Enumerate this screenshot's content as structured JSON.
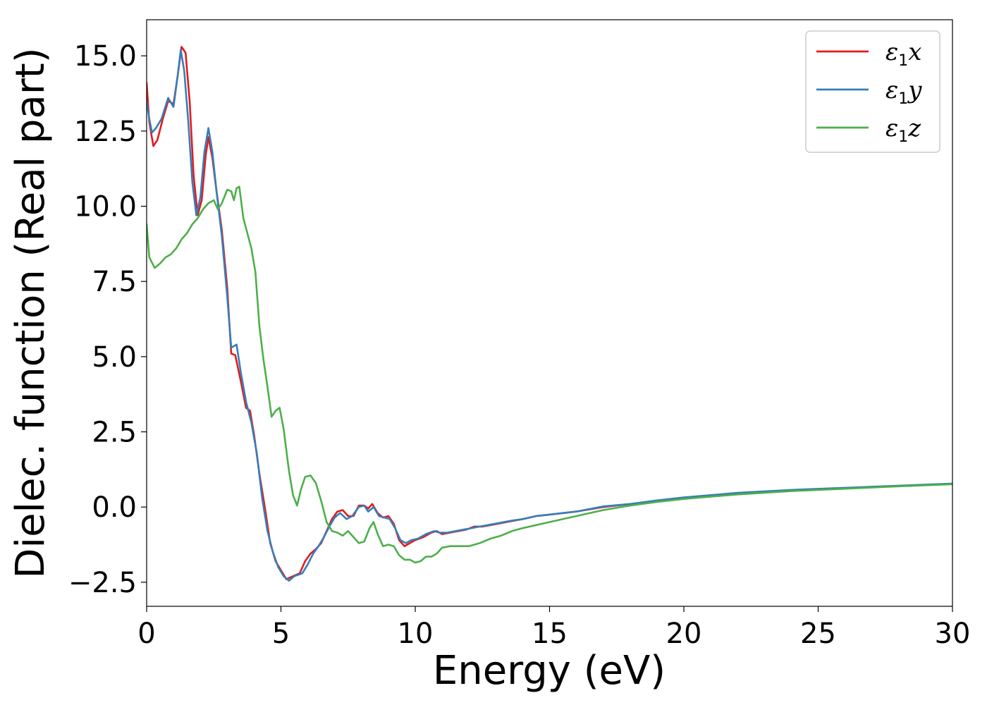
{
  "chart_data": {
    "type": "line",
    "xlabel": "Energy (eV)",
    "ylabel": "Dielec. function (Real part)",
    "xlim": [
      0,
      30
    ],
    "ylim": [
      -3.3,
      16.2
    ],
    "xticks": [
      0,
      5,
      10,
      15,
      20,
      25,
      30
    ],
    "xtick_labels": [
      "0",
      "5",
      "10",
      "15",
      "20",
      "25",
      "30"
    ],
    "yticks": [
      -2.5,
      0.0,
      2.5,
      5.0,
      7.5,
      10.0,
      12.5,
      15.0
    ],
    "ytick_labels": [
      "−2.5",
      "0.0",
      "2.5",
      "5.0",
      "7.5",
      "10.0",
      "12.5",
      "15.0"
    ],
    "grid": false,
    "legend_position": "top-right",
    "series": [
      {
        "name": "ε₁x",
        "legend_symbol": "ε",
        "legend_sub": "1",
        "legend_var": "x",
        "color": "#e41a1c",
        "points": [
          [
            0,
            14.1
          ],
          [
            0.1,
            12.8
          ],
          [
            0.25,
            12.0
          ],
          [
            0.4,
            12.2
          ],
          [
            0.6,
            12.9
          ],
          [
            0.8,
            13.5
          ],
          [
            1.0,
            13.4
          ],
          [
            1.15,
            14.3
          ],
          [
            1.3,
            15.3
          ],
          [
            1.45,
            15.1
          ],
          [
            1.6,
            13.5
          ],
          [
            1.75,
            11.0
          ],
          [
            1.9,
            9.7
          ],
          [
            2.05,
            10.2
          ],
          [
            2.2,
            11.7
          ],
          [
            2.3,
            12.3
          ],
          [
            2.45,
            11.6
          ],
          [
            2.6,
            10.5
          ],
          [
            2.8,
            9.2
          ],
          [
            3.0,
            7.3
          ],
          [
            3.15,
            5.1
          ],
          [
            3.3,
            5.05
          ],
          [
            3.5,
            4.2
          ],
          [
            3.7,
            3.3
          ],
          [
            3.85,
            3.2
          ],
          [
            4.0,
            2.4
          ],
          [
            4.2,
            1.1
          ],
          [
            4.4,
            0.0
          ],
          [
            4.6,
            -1.2
          ],
          [
            4.8,
            -1.8
          ],
          [
            5.0,
            -2.1
          ],
          [
            5.2,
            -2.4
          ],
          [
            5.45,
            -2.3
          ],
          [
            5.7,
            -2.2
          ],
          [
            5.9,
            -1.8
          ],
          [
            6.1,
            -1.55
          ],
          [
            6.3,
            -1.4
          ],
          [
            6.5,
            -1.2
          ],
          [
            6.7,
            -0.8
          ],
          [
            6.9,
            -0.4
          ],
          [
            7.1,
            -0.15
          ],
          [
            7.3,
            -0.1
          ],
          [
            7.5,
            -0.3
          ],
          [
            7.7,
            -0.3
          ],
          [
            7.9,
            0.05
          ],
          [
            8.1,
            0.05
          ],
          [
            8.25,
            -0.05
          ],
          [
            8.4,
            0.1
          ],
          [
            8.6,
            -0.2
          ],
          [
            8.8,
            -0.35
          ],
          [
            9.0,
            -0.3
          ],
          [
            9.2,
            -0.55
          ],
          [
            9.4,
            -1.1
          ],
          [
            9.6,
            -1.3
          ],
          [
            9.8,
            -1.2
          ],
          [
            10.0,
            -1.1
          ],
          [
            10.3,
            -1.0
          ],
          [
            10.6,
            -0.85
          ],
          [
            10.8,
            -0.8
          ],
          [
            11.0,
            -0.9
          ],
          [
            11.3,
            -0.85
          ],
          [
            11.6,
            -0.8
          ],
          [
            11.9,
            -0.75
          ],
          [
            12.2,
            -0.65
          ],
          [
            12.5,
            -0.65
          ],
          [
            12.8,
            -0.6
          ],
          [
            13.1,
            -0.55
          ],
          [
            13.4,
            -0.5
          ],
          [
            13.7,
            -0.45
          ],
          [
            14.0,
            -0.4
          ],
          [
            14.5,
            -0.3
          ],
          [
            15.0,
            -0.25
          ],
          [
            16.0,
            -0.15
          ],
          [
            17.0,
            0.0
          ],
          [
            18.0,
            0.1
          ],
          [
            19.0,
            0.2
          ],
          [
            20.0,
            0.3
          ],
          [
            22.0,
            0.45
          ],
          [
            24.0,
            0.55
          ],
          [
            26.0,
            0.62
          ],
          [
            28.0,
            0.7
          ],
          [
            30.0,
            0.77
          ]
        ]
      },
      {
        "name": "ε₁y",
        "legend_symbol": "ε",
        "legend_sub": "1",
        "legend_var": "y",
        "color": "#377eb8",
        "points": [
          [
            0,
            13.5
          ],
          [
            0.1,
            12.9
          ],
          [
            0.2,
            12.45
          ],
          [
            0.35,
            12.6
          ],
          [
            0.55,
            12.9
          ],
          [
            0.8,
            13.6
          ],
          [
            1.0,
            13.3
          ],
          [
            1.15,
            14.3
          ],
          [
            1.27,
            15.2
          ],
          [
            1.4,
            14.5
          ],
          [
            1.55,
            12.8
          ],
          [
            1.7,
            10.8
          ],
          [
            1.85,
            9.7
          ],
          [
            2.0,
            10.3
          ],
          [
            2.15,
            11.8
          ],
          [
            2.3,
            12.6
          ],
          [
            2.45,
            11.8
          ],
          [
            2.6,
            10.5
          ],
          [
            2.8,
            9.0
          ],
          [
            3.0,
            7.0
          ],
          [
            3.15,
            5.3
          ],
          [
            3.35,
            5.4
          ],
          [
            3.5,
            4.5
          ],
          [
            3.7,
            3.5
          ],
          [
            3.9,
            2.8
          ],
          [
            4.1,
            1.8
          ],
          [
            4.3,
            0.3
          ],
          [
            4.5,
            -0.8
          ],
          [
            4.7,
            -1.5
          ],
          [
            4.9,
            -2.0
          ],
          [
            5.1,
            -2.3
          ],
          [
            5.3,
            -2.45
          ],
          [
            5.5,
            -2.3
          ],
          [
            5.8,
            -2.2
          ],
          [
            6.0,
            -1.9
          ],
          [
            6.2,
            -1.55
          ],
          [
            6.4,
            -1.3
          ],
          [
            6.6,
            -1.0
          ],
          [
            6.8,
            -0.65
          ],
          [
            7.0,
            -0.35
          ],
          [
            7.2,
            -0.2
          ],
          [
            7.45,
            -0.4
          ],
          [
            7.65,
            -0.3
          ],
          [
            7.9,
            0.0
          ],
          [
            8.1,
            0.05
          ],
          [
            8.25,
            -0.15
          ],
          [
            8.45,
            0.0
          ],
          [
            8.65,
            -0.3
          ],
          [
            8.85,
            -0.35
          ],
          [
            9.05,
            -0.4
          ],
          [
            9.25,
            -0.7
          ],
          [
            9.45,
            -1.1
          ],
          [
            9.65,
            -1.2
          ],
          [
            9.85,
            -1.1
          ],
          [
            10.1,
            -1.05
          ],
          [
            10.4,
            -0.9
          ],
          [
            10.7,
            -0.8
          ],
          [
            10.9,
            -0.85
          ],
          [
            11.2,
            -0.85
          ],
          [
            11.5,
            -0.8
          ],
          [
            11.8,
            -0.75
          ],
          [
            12.1,
            -0.7
          ],
          [
            12.4,
            -0.65
          ],
          [
            12.7,
            -0.6
          ],
          [
            13.0,
            -0.55
          ],
          [
            13.3,
            -0.5
          ],
          [
            13.6,
            -0.45
          ],
          [
            14.0,
            -0.4
          ],
          [
            14.5,
            -0.3
          ],
          [
            15.0,
            -0.25
          ],
          [
            16.0,
            -0.15
          ],
          [
            17.0,
            0.02
          ],
          [
            18.0,
            0.1
          ],
          [
            19.0,
            0.22
          ],
          [
            20.0,
            0.32
          ],
          [
            22.0,
            0.47
          ],
          [
            24.0,
            0.57
          ],
          [
            26.0,
            0.64
          ],
          [
            28.0,
            0.71
          ],
          [
            30.0,
            0.78
          ]
        ]
      },
      {
        "name": "ε₁z",
        "legend_symbol": "ε",
        "legend_sub": "1",
        "legend_var": "z",
        "color": "#4daf4a",
        "points": [
          [
            0,
            9.4
          ],
          [
            0.1,
            8.3
          ],
          [
            0.3,
            7.95
          ],
          [
            0.5,
            8.1
          ],
          [
            0.7,
            8.3
          ],
          [
            0.9,
            8.4
          ],
          [
            1.1,
            8.6
          ],
          [
            1.3,
            8.9
          ],
          [
            1.5,
            9.1
          ],
          [
            1.7,
            9.4
          ],
          [
            1.9,
            9.6
          ],
          [
            2.1,
            9.9
          ],
          [
            2.3,
            10.1
          ],
          [
            2.5,
            10.2
          ],
          [
            2.65,
            9.9
          ],
          [
            2.8,
            10.1
          ],
          [
            3.0,
            10.55
          ],
          [
            3.15,
            10.5
          ],
          [
            3.25,
            10.2
          ],
          [
            3.35,
            10.6
          ],
          [
            3.45,
            10.65
          ],
          [
            3.6,
            9.6
          ],
          [
            3.75,
            9.1
          ],
          [
            3.9,
            8.6
          ],
          [
            4.05,
            7.8
          ],
          [
            4.2,
            6.0
          ],
          [
            4.35,
            4.9
          ],
          [
            4.5,
            4.0
          ],
          [
            4.65,
            3.0
          ],
          [
            4.8,
            3.2
          ],
          [
            4.95,
            3.3
          ],
          [
            5.1,
            2.6
          ],
          [
            5.3,
            1.2
          ],
          [
            5.45,
            0.4
          ],
          [
            5.6,
            0.05
          ],
          [
            5.75,
            0.6
          ],
          [
            5.9,
            1.0
          ],
          [
            6.1,
            1.05
          ],
          [
            6.3,
            0.8
          ],
          [
            6.5,
            0.2
          ],
          [
            6.7,
            -0.5
          ],
          [
            6.9,
            -0.8
          ],
          [
            7.1,
            -0.85
          ],
          [
            7.3,
            -0.95
          ],
          [
            7.5,
            -0.8
          ],
          [
            7.7,
            -1.0
          ],
          [
            7.9,
            -1.2
          ],
          [
            8.1,
            -1.15
          ],
          [
            8.3,
            -0.7
          ],
          [
            8.45,
            -0.5
          ],
          [
            8.6,
            -0.9
          ],
          [
            8.8,
            -1.3
          ],
          [
            9.0,
            -1.25
          ],
          [
            9.2,
            -1.3
          ],
          [
            9.4,
            -1.6
          ],
          [
            9.6,
            -1.75
          ],
          [
            9.8,
            -1.75
          ],
          [
            10.0,
            -1.85
          ],
          [
            10.2,
            -1.8
          ],
          [
            10.4,
            -1.65
          ],
          [
            10.6,
            -1.65
          ],
          [
            10.8,
            -1.55
          ],
          [
            11.0,
            -1.35
          ],
          [
            11.3,
            -1.3
          ],
          [
            11.6,
            -1.3
          ],
          [
            12.0,
            -1.3
          ],
          [
            12.4,
            -1.2
          ],
          [
            12.8,
            -1.05
          ],
          [
            13.2,
            -0.95
          ],
          [
            13.6,
            -0.8
          ],
          [
            14.0,
            -0.7
          ],
          [
            14.5,
            -0.6
          ],
          [
            15.0,
            -0.5
          ],
          [
            16.0,
            -0.3
          ],
          [
            17.0,
            -0.1
          ],
          [
            18.0,
            0.05
          ],
          [
            19.0,
            0.17
          ],
          [
            20.0,
            0.27
          ],
          [
            22.0,
            0.42
          ],
          [
            24.0,
            0.53
          ],
          [
            26.0,
            0.61
          ],
          [
            28.0,
            0.69
          ],
          [
            30.0,
            0.76
          ]
        ]
      }
    ]
  }
}
